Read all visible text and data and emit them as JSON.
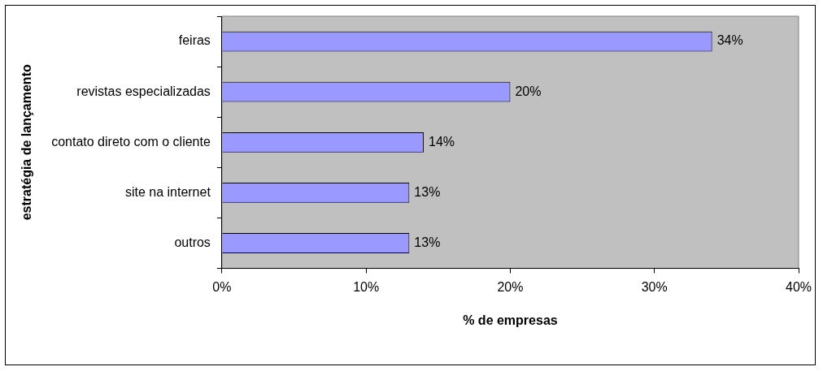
{
  "chart_data": {
    "type": "bar",
    "orientation": "horizontal",
    "xlabel": "% de empresas",
    "ylabel": "estratégia de lançamento",
    "categories": [
      "feiras",
      "revistas especializadas",
      "contato direto com o cliente",
      "site na internet",
      "outros"
    ],
    "values": [
      34,
      20,
      14,
      13,
      13
    ],
    "value_labels": [
      "34%",
      "20%",
      "14%",
      "13%",
      "13%"
    ],
    "color": "#9999ff",
    "xlim": [
      0,
      40
    ],
    "xticks": [
      {
        "value": 0,
        "label": "0%"
      },
      {
        "value": 10,
        "label": "10%"
      },
      {
        "value": 20,
        "label": "20%"
      },
      {
        "value": 30,
        "label": "30%"
      },
      {
        "value": 40,
        "label": "40%"
      }
    ],
    "grid": false,
    "legend": false
  }
}
